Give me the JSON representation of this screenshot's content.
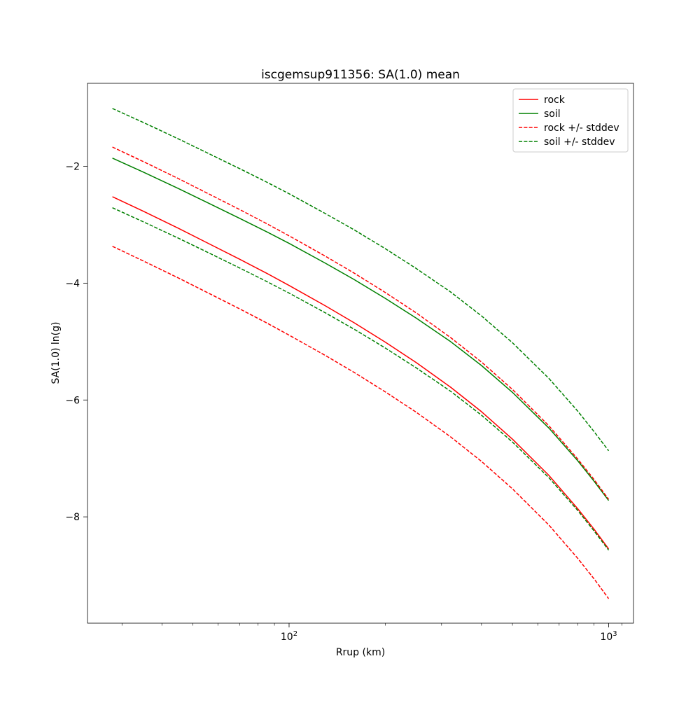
{
  "figure": {
    "background": "#ffffff"
  },
  "chart_data": {
    "type": "line",
    "title": "iscgemsup911356: SA(1.0) mean",
    "xlabel": "Rrup (km)",
    "ylabel": "SA(1.0) ln(g)",
    "x_scale": "log",
    "y_scale": "linear",
    "xlim": [
      23.4,
      1196
    ],
    "ylim": [
      -9.82,
      -0.58
    ],
    "grid": false,
    "colors": {
      "rock": "#ff0000",
      "soil": "#008000",
      "axes": "#000000",
      "legend_border": "#cccccc"
    },
    "x_ticks": {
      "major": [
        {
          "value": 100,
          "base": "10",
          "exp": "2"
        },
        {
          "value": 1000,
          "base": "10",
          "exp": "3"
        }
      ],
      "minor": [
        30,
        40,
        50,
        60,
        70,
        80,
        90,
        200,
        300,
        400,
        500,
        600,
        700,
        800,
        900,
        1100
      ]
    },
    "y_ticks": [
      {
        "value": -2,
        "label": "−2"
      },
      {
        "value": -4,
        "label": "−4"
      },
      {
        "value": -6,
        "label": "−6"
      },
      {
        "value": -8,
        "label": "−8"
      }
    ],
    "x": [
      28,
      35,
      45,
      55,
      70,
      85,
      100,
      130,
      160,
      200,
      250,
      320,
      400,
      500,
      650,
      800,
      900,
      1000
    ],
    "series": [
      {
        "id": "rock-mean",
        "name": "rock",
        "color": "#ff0000",
        "dash": false,
        "values": [
          -2.52,
          -2.77,
          -3.06,
          -3.3,
          -3.59,
          -3.83,
          -4.04,
          -4.39,
          -4.68,
          -5.01,
          -5.36,
          -5.78,
          -6.2,
          -6.67,
          -7.29,
          -7.86,
          -8.21,
          -8.55
        ]
      },
      {
        "id": "soil-mean",
        "name": "soil",
        "color": "#008000",
        "dash": false,
        "values": [
          -1.86,
          -2.1,
          -2.38,
          -2.61,
          -2.89,
          -3.12,
          -3.32,
          -3.66,
          -3.94,
          -4.26,
          -4.6,
          -5.0,
          -5.41,
          -5.87,
          -6.48,
          -7.04,
          -7.39,
          -7.72
        ]
      },
      {
        "id": "rock-plus-stddev",
        "name": "rock + stddev",
        "color": "#ff0000",
        "dash": true,
        "values": [
          -1.67,
          -1.92,
          -2.21,
          -2.45,
          -2.74,
          -2.98,
          -3.19,
          -3.54,
          -3.83,
          -4.16,
          -4.51,
          -4.93,
          -5.35,
          -5.82,
          -6.44,
          -7.01,
          -7.36,
          -7.7
        ]
      },
      {
        "id": "rock-minus-stddev",
        "name": "rock - stddev",
        "color": "#ff0000",
        "dash": true,
        "values": [
          -3.37,
          -3.62,
          -3.91,
          -4.15,
          -4.44,
          -4.68,
          -4.89,
          -5.24,
          -5.53,
          -5.86,
          -6.21,
          -6.63,
          -7.05,
          -7.52,
          -8.14,
          -8.71,
          -9.06,
          -9.4
        ]
      },
      {
        "id": "soil-plus-stddev",
        "name": "soil + stddev",
        "color": "#008000",
        "dash": true,
        "values": [
          -1.01,
          -1.25,
          -1.53,
          -1.76,
          -2.04,
          -2.27,
          -2.47,
          -2.81,
          -3.09,
          -3.41,
          -3.75,
          -4.15,
          -4.56,
          -5.02,
          -5.63,
          -6.19,
          -6.54,
          -6.87
        ]
      },
      {
        "id": "soil-minus-stddev",
        "name": "soil - stddev",
        "color": "#008000",
        "dash": true,
        "values": [
          -2.71,
          -2.95,
          -3.23,
          -3.46,
          -3.74,
          -3.97,
          -4.17,
          -4.51,
          -4.79,
          -5.11,
          -5.45,
          -5.85,
          -6.26,
          -6.72,
          -7.33,
          -7.89,
          -8.24,
          -8.57
        ]
      }
    ],
    "legend": {
      "position": "upper right",
      "entries": [
        {
          "label": "rock",
          "color": "#ff0000",
          "dash": false
        },
        {
          "label": "soil",
          "color": "#008000",
          "dash": false
        },
        {
          "label": "rock +/- stddev",
          "color": "#ff0000",
          "dash": true
        },
        {
          "label": "soil +/- stddev",
          "color": "#008000",
          "dash": true
        }
      ]
    }
  }
}
